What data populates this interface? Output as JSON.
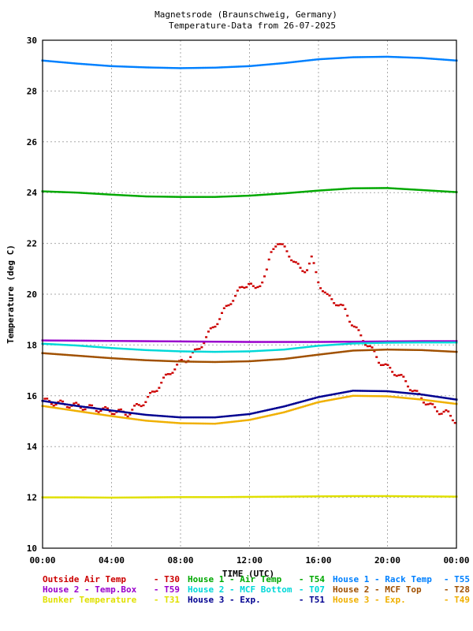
{
  "chart_data": {
    "type": "scatter",
    "title": "Magnetsrode (Braunschweig, Germany)",
    "subtitle": "Temperature-Data from 26-07-2025",
    "xlabel": "TIME (UTC)",
    "ylabel": "Temperature (deg C)",
    "xlim": [
      0,
      24
    ],
    "ylim": [
      10,
      30
    ],
    "x_ticks": [
      "00:00",
      "04:00",
      "08:00",
      "12:00",
      "16:00",
      "20:00",
      "00:00"
    ],
    "y_ticks": [
      "10",
      "12",
      "14",
      "16",
      "18",
      "20",
      "22",
      "24",
      "26",
      "28",
      "30"
    ],
    "grid": true,
    "legend_position": "bottom",
    "series": [
      {
        "name": "Outside Air Temp",
        "code": "T30",
        "color": "#cc0000",
        "x": [
          0,
          2,
          4,
          5,
          5.5,
          6,
          6.5,
          7,
          7.5,
          8,
          8.5,
          9,
          9.5,
          10,
          10.5,
          11,
          11.5,
          12,
          12.3,
          12.6,
          13,
          13.3,
          13.6,
          14,
          14.5,
          15,
          15.3,
          15.6,
          16,
          16.5,
          17,
          17.5,
          18,
          18.5,
          19,
          19.5,
          20,
          20.5,
          21,
          21.5,
          22,
          22.5,
          23,
          23.5,
          24
        ],
        "y": [
          15.8,
          15.6,
          15.4,
          15.3,
          15.6,
          15.8,
          16.2,
          16.6,
          17.0,
          17.3,
          17.5,
          17.8,
          18.3,
          18.8,
          19.3,
          19.8,
          20.2,
          20.5,
          20.1,
          20.4,
          20.9,
          21.7,
          22.1,
          21.8,
          21.4,
          20.9,
          21.0,
          21.4,
          20.5,
          19.9,
          19.7,
          19.4,
          18.8,
          18.3,
          17.9,
          17.4,
          17.1,
          16.9,
          16.6,
          16.2,
          15.9,
          15.6,
          15.4,
          15.3,
          15.0
        ]
      },
      {
        "name": "House 1 - Air  Temp",
        "code": "T54",
        "color": "#00a800",
        "x": [
          0,
          2,
          4,
          6,
          8,
          10,
          12,
          14,
          16,
          18,
          20,
          22,
          24
        ],
        "y": [
          24.05,
          24.0,
          23.92,
          23.85,
          23.83,
          23.83,
          23.88,
          23.97,
          24.08,
          24.17,
          24.18,
          24.1,
          24.02
        ]
      },
      {
        "name": "House 1 - Rack Temp",
        "code": "T55",
        "color": "#0080ff",
        "x": [
          0,
          2,
          4,
          6,
          8,
          10,
          12,
          14,
          16,
          18,
          20,
          22,
          24
        ],
        "y": [
          29.2,
          29.08,
          28.98,
          28.93,
          28.9,
          28.92,
          28.98,
          29.1,
          29.25,
          29.33,
          29.35,
          29.3,
          29.2
        ]
      },
      {
        "name": "House 2 - Temp.Box",
        "code": "T59",
        "color": "#9900cc",
        "x": [
          0,
          2,
          4,
          6,
          8,
          10,
          12,
          14,
          16,
          18,
          20,
          22,
          24
        ],
        "y": [
          18.18,
          18.17,
          18.16,
          18.15,
          18.14,
          18.13,
          18.12,
          18.12,
          18.12,
          18.13,
          18.14,
          18.15,
          18.15
        ]
      },
      {
        "name": "House 2 - MCF Bottom",
        "code": "T07",
        "color": "#00d8d8",
        "x": [
          0,
          2,
          4,
          6,
          8,
          10,
          12,
          14,
          16,
          18,
          20,
          22,
          24
        ],
        "y": [
          18.05,
          17.98,
          17.88,
          17.8,
          17.75,
          17.73,
          17.75,
          17.82,
          17.97,
          18.06,
          18.09,
          18.1,
          18.1
        ]
      },
      {
        "name": "House 2 - MCF Top",
        "code": "T28",
        "color": "#a05000",
        "x": [
          0,
          2,
          4,
          6,
          8,
          10,
          12,
          14,
          16,
          18,
          20,
          22,
          24
        ],
        "y": [
          17.68,
          17.58,
          17.48,
          17.4,
          17.35,
          17.33,
          17.36,
          17.45,
          17.62,
          17.78,
          17.82,
          17.8,
          17.73
        ]
      },
      {
        "name": "Bunker Temperature",
        "code": "T31",
        "color": "#e0e000",
        "x": [
          0,
          2,
          4,
          6,
          8,
          10,
          12,
          14,
          16,
          18,
          20,
          22,
          24
        ],
        "y": [
          12.0,
          12.0,
          11.99,
          12.0,
          12.01,
          12.01,
          12.02,
          12.03,
          12.04,
          12.05,
          12.05,
          12.04,
          12.03
        ]
      },
      {
        "name": "House 3 - Exp.",
        "code": "T51",
        "color": "#000090",
        "x": [
          0,
          2,
          4,
          6,
          8,
          10,
          12,
          14,
          16,
          18,
          20,
          22,
          24
        ],
        "y": [
          15.8,
          15.6,
          15.42,
          15.25,
          15.15,
          15.15,
          15.28,
          15.58,
          15.95,
          16.2,
          16.18,
          16.05,
          15.85
        ]
      },
      {
        "name": "House 3 - Exp.",
        "code": "T49",
        "color": "#f0b000",
        "x": [
          0,
          2,
          4,
          6,
          8,
          10,
          12,
          14,
          16,
          18,
          20,
          22,
          24
        ],
        "y": [
          15.6,
          15.4,
          15.2,
          15.02,
          14.92,
          14.9,
          15.05,
          15.35,
          15.75,
          16.0,
          15.98,
          15.85,
          15.68
        ]
      }
    ]
  }
}
